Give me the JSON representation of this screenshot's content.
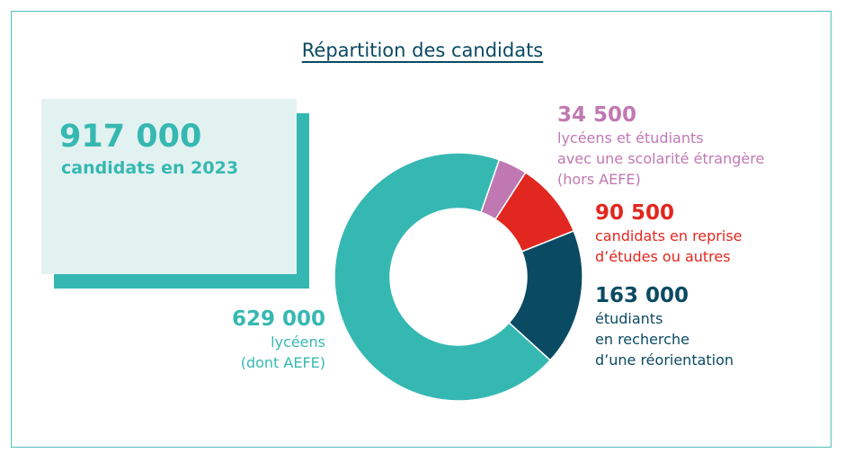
{
  "title": "Répartition des candidats",
  "total": {
    "value": "917 000",
    "label": "candidats en 2023"
  },
  "colors": {
    "teal": "#36b8b2",
    "pink": "#c078b2",
    "red": "#e1271f",
    "navy": "#0b4a63",
    "card_bg": "#e2f2f1",
    "frame": "#4fbfb7"
  },
  "labels": {
    "lyceens": {
      "value": "629 000",
      "lines": [
        "lycéens",
        "(dont AEFE)"
      ]
    },
    "etrangers": {
      "value": "34 500",
      "lines": [
        "lycéens et étudiants",
        "avec une scolarité étrangère",
        "(hors AEFE)"
      ]
    },
    "reprise": {
      "value": "90 500",
      "lines": [
        "candidats en reprise",
        "d’études ou autres"
      ]
    },
    "reorientation": {
      "value": "163 000",
      "lines": [
        "étudiants",
        "en recherche",
        "d’une réorientation"
      ]
    }
  },
  "chart_data": {
    "type": "pie",
    "style": "donut",
    "title": "Répartition des candidats",
    "series": [
      {
        "name": "lycéens (dont AEFE)",
        "value": 629000,
        "color": "#36b8b2"
      },
      {
        "name": "lycéens et étudiants avec une scolarité étrangère (hors AEFE)",
        "value": 34500,
        "color": "#c078b2"
      },
      {
        "name": "candidats en reprise d’études ou autres",
        "value": 90500,
        "color": "#e1271f"
      },
      {
        "name": "étudiants en recherche d’une réorientation",
        "value": 163000,
        "color": "#0b4a63"
      }
    ],
    "total": 917000
  }
}
